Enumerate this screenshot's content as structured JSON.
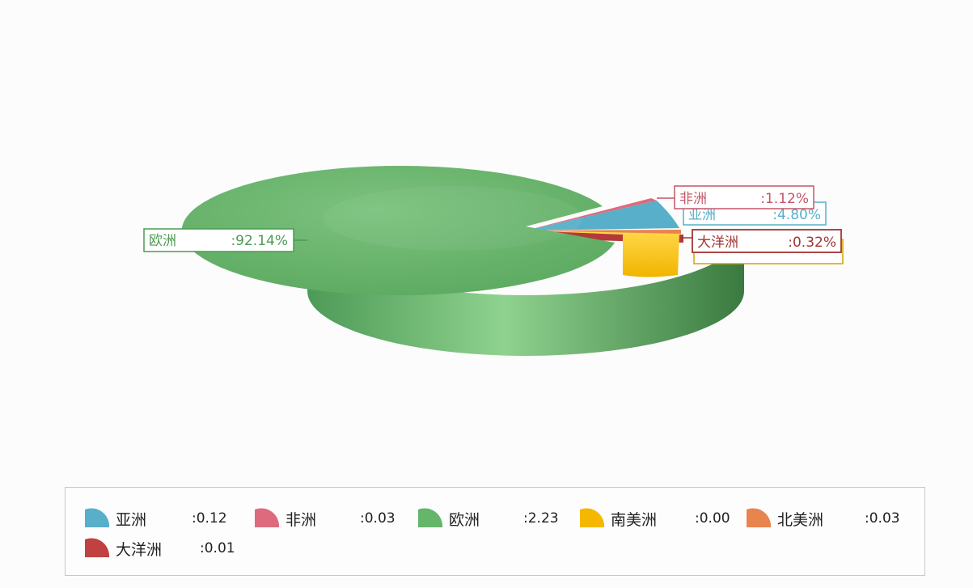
{
  "chart_data": {
    "type": "pie",
    "title": "",
    "labels": [
      "亚洲",
      "非洲",
      "欧洲",
      "南美洲",
      "北美洲",
      "大洋洲"
    ],
    "values": [
      0.12,
      0.03,
      2.23,
      0.0,
      0.03,
      0.01
    ],
    "value_labels": [
      ":0.12",
      ":0.03",
      ":2.23",
      ":0.00",
      ":0.03",
      ":0.01"
    ],
    "percent_labels": [
      ":4.80%",
      ":1.12%",
      ":92.14%",
      "",
      "",
      ":0.32%"
    ],
    "colors": [
      "#57afc9",
      "#de6a7d",
      "#65b56b",
      "#f4b800",
      "#e8844e",
      "#c0413f"
    ],
    "legend_position": "bottom",
    "style": "3d"
  }
}
